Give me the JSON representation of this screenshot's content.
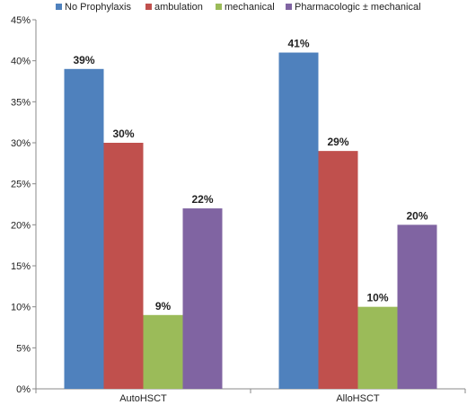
{
  "chart_data": {
    "type": "bar",
    "title": "",
    "xlabel": "",
    "ylabel": "",
    "categories": [
      "AutoHSCT",
      "AlloHSCT"
    ],
    "series": [
      {
        "name": "No Prophylaxis",
        "values": [
          39,
          41
        ],
        "labels": [
          "39%",
          "41%"
        ],
        "color": "#4f81bd"
      },
      {
        "name": "ambulation",
        "values": [
          30,
          29
        ],
        "labels": [
          "30%",
          "29%"
        ],
        "color": "#c0504d"
      },
      {
        "name": "mechanical",
        "values": [
          9,
          10
        ],
        "labels": [
          "9%",
          "10%"
        ],
        "color": "#9bbb59"
      },
      {
        "name": "Pharmacologic ± mechanical",
        "values": [
          22,
          20
        ],
        "labels": [
          "22%",
          "20%"
        ],
        "color": "#8064a2"
      }
    ],
    "ylim": [
      0,
      45
    ],
    "yticks": [
      "0%",
      "5%",
      "10%",
      "15%",
      "20%",
      "25%",
      "30%",
      "35%",
      "40%",
      "45%"
    ],
    "grid": false,
    "legend_position": "top"
  }
}
